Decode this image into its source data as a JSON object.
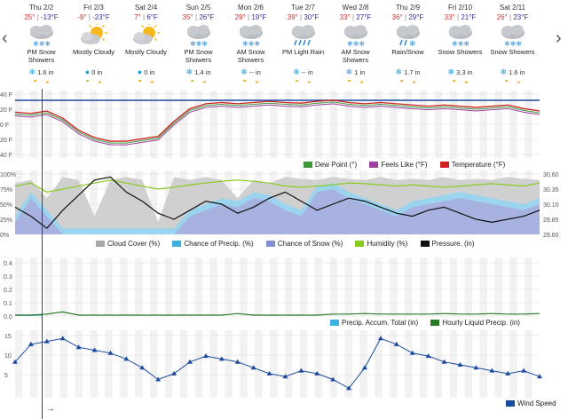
{
  "nav": {
    "prev": "‹",
    "next": "›"
  },
  "days": [
    {
      "date": "Thu 2/2",
      "hi": "25°",
      "lo": "-13°F",
      "condition": "PM Snow Showers",
      "icon": "snow-cloud-icon",
      "precip": "1.6 in"
    },
    {
      "date": "Fri 2/3",
      "hi": "-9°",
      "lo": "-23°F",
      "condition": "Mostly Cloudy",
      "icon": "partly-cloudy-icon",
      "precip": "0 in"
    },
    {
      "date": "Sat 2/4",
      "hi": "7°",
      "lo": "6°F",
      "condition": "Mostly Cloudy",
      "icon": "partly-cloudy-icon",
      "precip": "0 in"
    },
    {
      "date": "Sun 2/5",
      "hi": "35°",
      "lo": "26°F",
      "condition": "PM Snow Showers",
      "icon": "snow-cloud-icon",
      "precip": "1.4 in"
    },
    {
      "date": "Mon 2/6",
      "hi": "29°",
      "lo": "19°F",
      "condition": "AM Snow Showers",
      "icon": "snow-cloud-icon",
      "precip": "-- in"
    },
    {
      "date": "Tue 2/7",
      "hi": "39°",
      "lo": "30°F",
      "condition": "PM Light Rain",
      "icon": "rain-cloud-icon",
      "precip": "-- in"
    },
    {
      "date": "Wed 2/8",
      "hi": "33°",
      "lo": "27°F",
      "condition": "AM Snow Showers",
      "icon": "snow-cloud-icon",
      "precip": "1 in"
    },
    {
      "date": "Thu 2/9",
      "hi": "36°",
      "lo": "29°F",
      "condition": "Rain/Snow",
      "icon": "rain-snow-cloud-icon",
      "precip": "1.7 in"
    },
    {
      "date": "Fri 2/10",
      "hi": "33°",
      "lo": "21°F",
      "condition": "Snow Showers",
      "icon": "snow-cloud-icon",
      "precip": "3.3 in"
    },
    {
      "date": "Sat 2/11",
      "hi": "26°",
      "lo": "23°F",
      "condition": "Snow Showers",
      "icon": "snow-cloud-icon",
      "precip": "1.6 in"
    }
  ],
  "temp_chart": {
    "y_ticks": [
      "40 F",
      "20 F",
      "0 F",
      "20 F",
      "40 F"
    ],
    "legend": [
      {
        "label": "Dew Point (°)",
        "color": "#3a9a3a"
      },
      {
        "label": "Feels Like (°F)",
        "color": "#a040a0"
      },
      {
        "label": "Temperature (°F)",
        "color": "#d02020"
      }
    ]
  },
  "humidity_chart": {
    "y_ticks_left": [
      "100%",
      "75%",
      "50%",
      "25%",
      "0%"
    ],
    "y_ticks_right": [
      "30.60",
      "30.35",
      "30.10",
      "29.85",
      "29.60"
    ],
    "legend": [
      {
        "label": "Cloud Cover (%)",
        "color": "#a8a8a8"
      },
      {
        "label": "Chance of Precip. (%)",
        "color": "#3db0e0"
      },
      {
        "label": "Chance of Snow (%)",
        "color": "#8090d0"
      },
      {
        "label": "Humidity (%)",
        "color": "#88cc22"
      },
      {
        "label": "Pressure. (in)",
        "color": "#111111"
      }
    ]
  },
  "precip_chart": {
    "y_ticks": [
      "0.4",
      "0.3",
      "0.2",
      "0.1",
      "0.0"
    ],
    "legend": [
      {
        "label": "Precip. Accum. Total (in)",
        "color": "#3db0e0"
      },
      {
        "label": "Hourly Liquid Precip. (in)",
        "color": "#2a7a2a"
      }
    ]
  },
  "wind_chart": {
    "y_ticks": [
      "15",
      "10",
      "5"
    ],
    "legend": [
      {
        "label": "Wind Speed",
        "color": "#1a4aa0"
      }
    ]
  },
  "scroll_arrow": "→"
}
